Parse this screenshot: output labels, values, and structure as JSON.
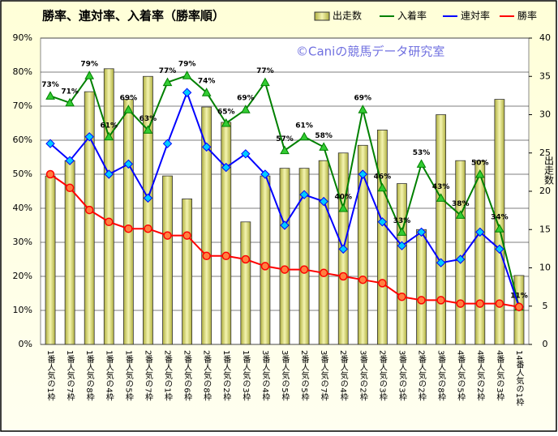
{
  "chart_data": {
    "type": "combo",
    "title": "勝率、連対率、入着率（勝率順）",
    "annotation": "©Caniの競馬データ研究室",
    "y2label": "出走数",
    "categories": [
      "1番人気の1枠",
      "1番人気の7枠",
      "1番人気の8枠",
      "1番人気の4枠",
      "1番人気の5枠",
      "2番人気の7枠",
      "2番人気の1枠",
      "2番人気の6枠",
      "2番人気の8枠",
      "1番人気の2枠",
      "1番人気の3枠",
      "3番人気の4枠",
      "3番人気の5枠",
      "2番人気の5枠",
      "3番人気の7枠",
      "2番人気の4枠",
      "3番人気の2枠",
      "2番人気の3枠",
      "3番人気の3枠",
      "2番人気の2枠",
      "3番人気の8枠",
      "4番人気の5枠",
      "4番人気の2枠",
      "4番人気の3枠",
      "14番人気の1枠"
    ],
    "series": [
      {
        "name": "出走数",
        "type": "bar",
        "axis": "y2",
        "color": "#e6e68c",
        "values": [
          22,
          24,
          33,
          36,
          32,
          35,
          22,
          19,
          31,
          29,
          16,
          22,
          23,
          23,
          24,
          25,
          26,
          28,
          21,
          15,
          30,
          24,
          24,
          32,
          9
        ]
      },
      {
        "name": "入着率",
        "type": "line",
        "color": "#008000",
        "values": [
          73,
          71,
          79,
          61,
          69,
          63,
          77,
          79,
          74,
          65,
          69,
          77,
          57,
          61,
          58,
          40,
          69,
          46,
          33,
          53,
          43,
          38,
          50,
          34,
          11
        ],
        "value_labels": [
          "73%",
          "71%",
          "79%",
          "61%",
          "69%",
          "63%",
          "77%",
          "79%",
          "74%",
          "65%",
          "69%",
          "77%",
          "57%",
          "61%",
          "58%",
          "40%",
          "69%",
          "46%",
          "33%",
          "53%",
          "43%",
          "38%",
          "50%",
          "34%",
          "11%"
        ]
      },
      {
        "name": "連対率",
        "type": "line",
        "color": "#0000ff",
        "values": [
          59,
          54,
          61,
          50,
          53,
          43,
          59,
          74,
          58,
          52,
          56,
          50,
          35,
          44,
          42,
          28,
          50,
          36,
          29,
          33,
          24,
          25,
          33,
          28,
          11
        ]
      },
      {
        "name": "勝率",
        "type": "line",
        "color": "#ff0000",
        "values": [
          50,
          46,
          39.5,
          36,
          34,
          34,
          32,
          32,
          26,
          26,
          25,
          23,
          22,
          22,
          21,
          20,
          19,
          18,
          14,
          13,
          13,
          12,
          12,
          12,
          11
        ]
      }
    ],
    "ylim": [
      0,
      90
    ],
    "yticks": [
      {
        "value": 0,
        "label": "0%"
      },
      {
        "value": 10,
        "label": "10%"
      },
      {
        "value": 20,
        "label": "20%"
      },
      {
        "value": 30,
        "label": "30%"
      },
      {
        "value": 40,
        "label": "40%"
      },
      {
        "value": 50,
        "label": "50%"
      },
      {
        "value": 60,
        "label": "60%"
      },
      {
        "value": 70,
        "label": "70%"
      },
      {
        "value": 80,
        "label": "80%"
      },
      {
        "value": 90,
        "label": "90%"
      }
    ],
    "y2lim": [
      0,
      40
    ],
    "y2ticks": [
      0,
      5,
      10,
      15,
      20,
      25,
      30,
      35,
      40
    ],
    "grid": true,
    "legend": "top-right"
  }
}
